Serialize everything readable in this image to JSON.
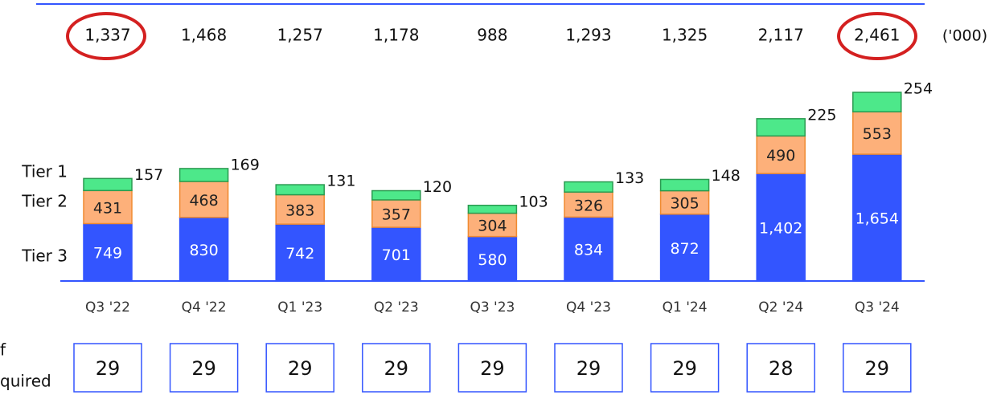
{
  "chart_data": {
    "type": "stacked_bar",
    "unit_note": "('000)",
    "categories": [
      "Q3 '22",
      "Q4 '22",
      "Q1 '23",
      "Q2 '23",
      "Q3 '23",
      "Q4 '23",
      "Q1 '24",
      "Q2 '24",
      "Q3 '24"
    ],
    "series": [
      {
        "name": "Tier 3",
        "color": "#3355ff",
        "values": [
          749,
          830,
          742,
          701,
          580,
          834,
          872,
          1402,
          1654
        ],
        "value_labels": [
          "749",
          "830",
          "742",
          "701",
          "580",
          "834",
          "872",
          "1,402",
          "1,654"
        ]
      },
      {
        "name": "Tier 2",
        "color": "#fdb07a",
        "values": [
          431,
          468,
          383,
          357,
          304,
          326,
          305,
          490,
          553
        ]
      },
      {
        "name": "Tier 1",
        "color": "#4de88a",
        "values": [
          157,
          169,
          131,
          120,
          103,
          133,
          148,
          225,
          254
        ]
      }
    ],
    "totals": {
      "values": [
        1337,
        1468,
        1257,
        1178,
        988,
        1293,
        1325,
        2117,
        2461
      ],
      "value_labels": [
        "1,337",
        "1,468",
        "1,257",
        "1,178",
        "988",
        "1,293",
        "1,325",
        "2,117",
        "2,461"
      ]
    },
    "row_label": [
      "f",
      "quired"
    ],
    "boxes": [
      29,
      29,
      29,
      29,
      29,
      29,
      29,
      28,
      29
    ]
  }
}
